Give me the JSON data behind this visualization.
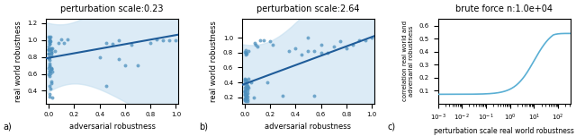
{
  "title_a": "perturbation scale:0.23",
  "title_b": "perturbation scale:2.64",
  "title_c": "brute force n:1.0e+04",
  "xlabel_ab": "adversarial robustness",
  "ylabel_ab": "real world robustness",
  "ylabel_c": "correlation real world and\nadversarial robustness",
  "xlabel_c": "perturbation scale real world robustness",
  "label_a": "a)",
  "label_b": "b)",
  "label_c": "c)",
  "scatter_color": "#4c8fbd",
  "line_color": "#1f5c99",
  "ci_color": "#c5dff0",
  "curve_color": "#5aafd4",
  "scatter_alpha": 0.75,
  "scatter_size": 8,
  "xlim_ab": [
    -0.02,
    1.02
  ],
  "ylim_a": [
    0.25,
    1.25
  ],
  "ylim_b": [
    0.12,
    1.25
  ],
  "line_a_intercept": 0.79,
  "line_a_slope": 0.27,
  "line_b_intercept": 0.38,
  "line_b_slope": 0.63,
  "ylim_c": [
    0.0,
    0.65
  ],
  "xticks_ab": [
    0.0,
    0.2,
    0.4,
    0.6,
    0.8,
    1.0
  ],
  "yticks_a": [
    0.4,
    0.6,
    0.8,
    1.0,
    1.2
  ],
  "yticks_b": [
    0.2,
    0.4,
    0.6,
    0.8,
    1.0
  ],
  "yticks_c": [
    0.1,
    0.2,
    0.3,
    0.4,
    0.5,
    0.6
  ]
}
